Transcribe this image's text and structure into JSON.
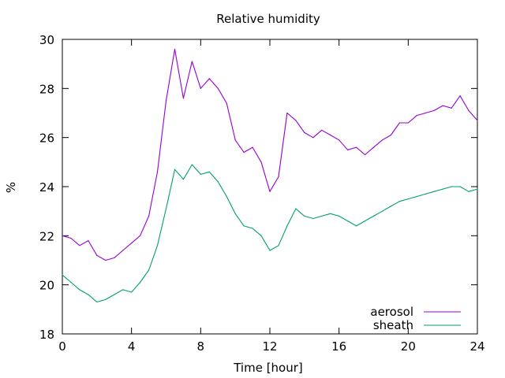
{
  "chart_data": {
    "type": "line",
    "title": "Relative humidity",
    "xlabel": "Time [hour]",
    "ylabel": "%",
    "xlim": [
      0,
      24
    ],
    "ylim": [
      18,
      30
    ],
    "x_ticks": [
      0,
      4,
      8,
      12,
      16,
      20,
      24
    ],
    "y_ticks": [
      18,
      20,
      22,
      24,
      26,
      28,
      30
    ],
    "grid": false,
    "legend_position": "bottom-right",
    "x": [
      0,
      0.5,
      1,
      1.5,
      2,
      2.5,
      3,
      3.5,
      4,
      4.5,
      5,
      5.5,
      6,
      6.5,
      7,
      7.5,
      8,
      8.5,
      9,
      9.5,
      10,
      10.5,
      11,
      11.5,
      12,
      12.5,
      13,
      13.5,
      14,
      14.5,
      15,
      15.5,
      16,
      16.5,
      17,
      17.5,
      18,
      18.5,
      19,
      19.5,
      20,
      20.5,
      21,
      21.5,
      22,
      22.5,
      23,
      23.5,
      24
    ],
    "series": [
      {
        "name": "aerosol",
        "color": "#9400d3",
        "values": [
          22.0,
          21.9,
          21.6,
          21.8,
          21.2,
          21.0,
          21.1,
          21.4,
          21.7,
          22.0,
          22.8,
          24.6,
          27.5,
          29.6,
          27.6,
          29.1,
          28.0,
          28.4,
          28.0,
          27.4,
          25.9,
          25.4,
          25.6,
          25.0,
          23.8,
          24.4,
          27.0,
          26.7,
          26.2,
          26.0,
          26.3,
          26.1,
          25.9,
          25.5,
          25.6,
          25.3,
          25.6,
          25.9,
          26.1,
          26.6,
          26.6,
          26.9,
          27.0,
          27.1,
          27.3,
          27.2,
          27.7,
          27.1,
          26.7
        ]
      },
      {
        "name": "sheath",
        "color": "#009e73",
        "values": [
          20.4,
          20.1,
          19.8,
          19.6,
          19.3,
          19.4,
          19.6,
          19.8,
          19.7,
          20.1,
          20.6,
          21.6,
          23.1,
          24.7,
          24.3,
          24.9,
          24.5,
          24.6,
          24.2,
          23.6,
          22.9,
          22.4,
          22.3,
          22.0,
          21.4,
          21.6,
          22.4,
          23.1,
          22.8,
          22.7,
          22.8,
          22.9,
          22.8,
          22.6,
          22.4,
          22.6,
          22.8,
          23.0,
          23.2,
          23.4,
          23.5,
          23.6,
          23.7,
          23.8,
          23.9,
          24.0,
          24.0,
          23.8,
          23.9
        ]
      }
    ]
  }
}
